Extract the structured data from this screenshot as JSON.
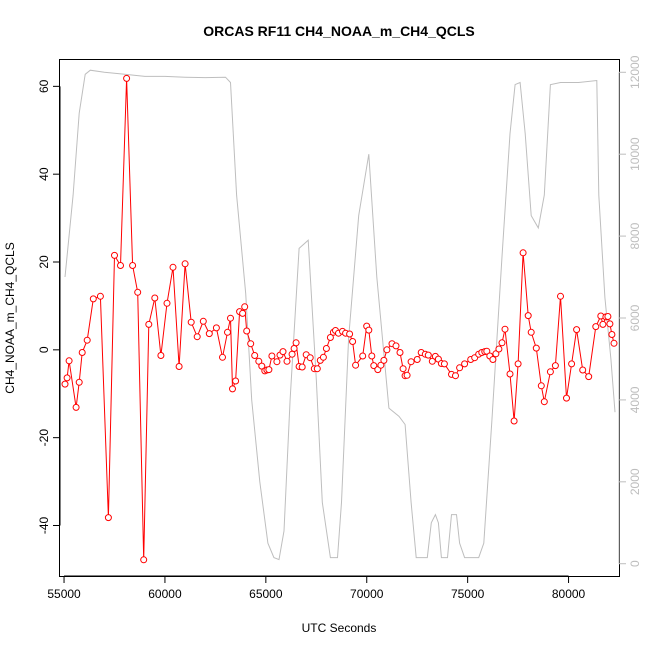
{
  "chart_data": {
    "type": "line",
    "title": "ORCAS RF11 CH4_NOAA_m_CH4_QCLS",
    "xlabel": "UTC Seconds",
    "ylabel": "CH4_NOAA_m_CH4_QCLS",
    "xlim": [
      54800,
      82500
    ],
    "ylim": [
      -51.5,
      66
    ],
    "y2lim": [
      -300,
      12300
    ],
    "x_ticks": [
      55000,
      60000,
      65000,
      70000,
      75000,
      80000
    ],
    "y_ticks": [
      -40,
      -20,
      0,
      20,
      40,
      60
    ],
    "y2_ticks": [
      0,
      2000,
      4000,
      6000,
      8000,
      10000,
      12000
    ],
    "grid": false,
    "colors": {
      "difference": "#ff0000",
      "altitude": "#bebebe",
      "axis": "#000000",
      "axis_right": "#bdbdbd"
    },
    "series": [
      {
        "axis": "left",
        "style": "line+points",
        "color": "#ff0000",
        "points": [
          [
            55050,
            -7.8
          ],
          [
            55150,
            -6.4
          ],
          [
            55250,
            -2.5
          ],
          [
            55600,
            -13.1
          ],
          [
            55750,
            -7.4
          ],
          [
            55900,
            -0.6
          ],
          [
            56150,
            2.2
          ],
          [
            56450,
            11.6
          ],
          [
            56800,
            12.2
          ],
          [
            57200,
            -38.2
          ],
          [
            57500,
            21.5
          ],
          [
            57800,
            19.2
          ],
          [
            58100,
            61.8
          ],
          [
            58400,
            19.2
          ],
          [
            58650,
            13.1
          ],
          [
            58950,
            -47.8
          ],
          [
            59200,
            5.8
          ],
          [
            59500,
            11.8
          ],
          [
            59800,
            -1.3
          ],
          [
            60100,
            10.6
          ],
          [
            60400,
            18.8
          ],
          [
            60700,
            -3.8
          ],
          [
            61000,
            19.6
          ],
          [
            61300,
            6.3
          ],
          [
            61600,
            3.0
          ],
          [
            61900,
            6.5
          ],
          [
            62200,
            3.7
          ],
          [
            62550,
            5.0
          ],
          [
            62850,
            -1.7
          ],
          [
            63100,
            4.0
          ],
          [
            63250,
            7.2
          ],
          [
            63350,
            -8.9
          ],
          [
            63500,
            -7.1
          ],
          [
            63700,
            8.7
          ],
          [
            63850,
            8.3
          ],
          [
            63950,
            9.8
          ],
          [
            64050,
            4.3
          ],
          [
            64250,
            1.4
          ],
          [
            64450,
            -1.3
          ],
          [
            64650,
            -2.6
          ],
          [
            64800,
            -3.7
          ],
          [
            64950,
            -4.8
          ],
          [
            65050,
            -4.6
          ],
          [
            65150,
            -4.5
          ],
          [
            65300,
            -1.4
          ],
          [
            65550,
            -2.7
          ],
          [
            65700,
            -1.2
          ],
          [
            65850,
            -0.4
          ],
          [
            66050,
            -2.6
          ],
          [
            66300,
            -1.0
          ],
          [
            66400,
            0.3
          ],
          [
            66500,
            1.6
          ],
          [
            66650,
            -3.8
          ],
          [
            66800,
            -3.9
          ],
          [
            67000,
            -1.1
          ],
          [
            67200,
            -1.8
          ],
          [
            67400,
            -4.3
          ],
          [
            67550,
            -4.3
          ],
          [
            67700,
            -2.4
          ],
          [
            67850,
            -1.7
          ],
          [
            68000,
            0.3
          ],
          [
            68200,
            2.8
          ],
          [
            68350,
            4.0
          ],
          [
            68450,
            4.4
          ],
          [
            68600,
            3.8
          ],
          [
            68800,
            4.2
          ],
          [
            68950,
            3.8
          ],
          [
            69150,
            3.6
          ],
          [
            69300,
            1.9
          ],
          [
            69450,
            -3.5
          ],
          [
            69800,
            -1.4
          ],
          [
            70000,
            5.4
          ],
          [
            70100,
            4.5
          ],
          [
            70250,
            -1.4
          ],
          [
            70350,
            -3.6
          ],
          [
            70550,
            -4.5
          ],
          [
            70700,
            -3.5
          ],
          [
            70850,
            -2.4
          ],
          [
            71000,
            0.0
          ],
          [
            71250,
            1.4
          ],
          [
            71450,
            0.9
          ],
          [
            71650,
            -0.6
          ],
          [
            71800,
            -4.3
          ],
          [
            71900,
            -5.9
          ],
          [
            72000,
            -5.8
          ],
          [
            72200,
            -2.7
          ],
          [
            72500,
            -2.2
          ],
          [
            72700,
            -0.6
          ],
          [
            72900,
            -1.0
          ],
          [
            73050,
            -1.2
          ],
          [
            73250,
            -2.6
          ],
          [
            73400,
            -1.5
          ],
          [
            73550,
            -2.1
          ],
          [
            73700,
            -3.1
          ],
          [
            73850,
            -3.2
          ],
          [
            74200,
            -5.6
          ],
          [
            74400,
            -5.9
          ],
          [
            74600,
            -4.1
          ],
          [
            74850,
            -3.2
          ],
          [
            75150,
            -2.2
          ],
          [
            75350,
            -1.8
          ],
          [
            75550,
            -1.0
          ],
          [
            75700,
            -0.6
          ],
          [
            75850,
            -0.4
          ],
          [
            75950,
            -0.3
          ],
          [
            76100,
            -1.4
          ],
          [
            76250,
            -2.2
          ],
          [
            76400,
            -0.9
          ],
          [
            76550,
            0.2
          ],
          [
            76700,
            1.6
          ],
          [
            76850,
            4.7
          ],
          [
            77100,
            -5.5
          ],
          [
            77300,
            -16.2
          ],
          [
            77500,
            -3.2
          ],
          [
            77750,
            22.1
          ],
          [
            78000,
            7.8
          ],
          [
            78150,
            4.0
          ],
          [
            78400,
            0.4
          ],
          [
            78650,
            -8.2
          ],
          [
            78800,
            -11.8
          ],
          [
            79100,
            -5.0
          ],
          [
            79350,
            -3.6
          ],
          [
            79600,
            12.2
          ],
          [
            79900,
            -11.0
          ],
          [
            80150,
            -3.2
          ],
          [
            80400,
            4.6
          ],
          [
            80700,
            -4.6
          ],
          [
            81000,
            -6.1
          ],
          [
            81350,
            5.3
          ],
          [
            81600,
            7.7
          ],
          [
            81700,
            5.8
          ],
          [
            81850,
            7.5
          ],
          [
            81950,
            7.6
          ],
          [
            82050,
            5.9
          ],
          [
            82150,
            3.5
          ],
          [
            82250,
            1.5
          ]
        ]
      },
      {
        "axis": "right",
        "style": "line",
        "color": "#bebebe",
        "points": [
          [
            55050,
            7000
          ],
          [
            55450,
            9000
          ],
          [
            55750,
            11000
          ],
          [
            56050,
            11950
          ],
          [
            56300,
            12050
          ],
          [
            57000,
            12000
          ],
          [
            58000,
            11950
          ],
          [
            59000,
            11900
          ],
          [
            60000,
            11900
          ],
          [
            61000,
            11880
          ],
          [
            62000,
            11870
          ],
          [
            63000,
            11880
          ],
          [
            63250,
            11750
          ],
          [
            63550,
            9000
          ],
          [
            64000,
            6600
          ],
          [
            64300,
            4000
          ],
          [
            64700,
            2000
          ],
          [
            65100,
            500
          ],
          [
            65400,
            150
          ],
          [
            65650,
            100
          ],
          [
            65900,
            800
          ],
          [
            66200,
            4000
          ],
          [
            66650,
            7700
          ],
          [
            67100,
            7900
          ],
          [
            67500,
            4500
          ],
          [
            67800,
            1500
          ],
          [
            68200,
            150
          ],
          [
            68550,
            150
          ],
          [
            68750,
            1500
          ],
          [
            69100,
            5500
          ],
          [
            69600,
            8500
          ],
          [
            70100,
            10000
          ],
          [
            70500,
            7000
          ],
          [
            71100,
            3800
          ],
          [
            71600,
            3600
          ],
          [
            71900,
            3400
          ],
          [
            72200,
            1500
          ],
          [
            72450,
            150
          ],
          [
            72800,
            150
          ],
          [
            73000,
            150
          ],
          [
            73200,
            1000
          ],
          [
            73400,
            1200
          ],
          [
            73550,
            1000
          ],
          [
            73700,
            150
          ],
          [
            74000,
            150
          ],
          [
            74200,
            1200
          ],
          [
            74450,
            1200
          ],
          [
            74600,
            500
          ],
          [
            74850,
            150
          ],
          [
            75550,
            150
          ],
          [
            75800,
            500
          ],
          [
            76200,
            3500
          ],
          [
            76700,
            7500
          ],
          [
            77100,
            10500
          ],
          [
            77350,
            11700
          ],
          [
            77600,
            11750
          ],
          [
            77850,
            10500
          ],
          [
            78150,
            8500
          ],
          [
            78500,
            8200
          ],
          [
            78800,
            9000
          ],
          [
            79100,
            11700
          ],
          [
            79600,
            11750
          ],
          [
            80500,
            11750
          ],
          [
            81400,
            11800
          ],
          [
            81500,
            9000
          ],
          [
            81800,
            6500
          ],
          [
            82100,
            5000
          ],
          [
            82300,
            3700
          ]
        ]
      }
    ]
  }
}
